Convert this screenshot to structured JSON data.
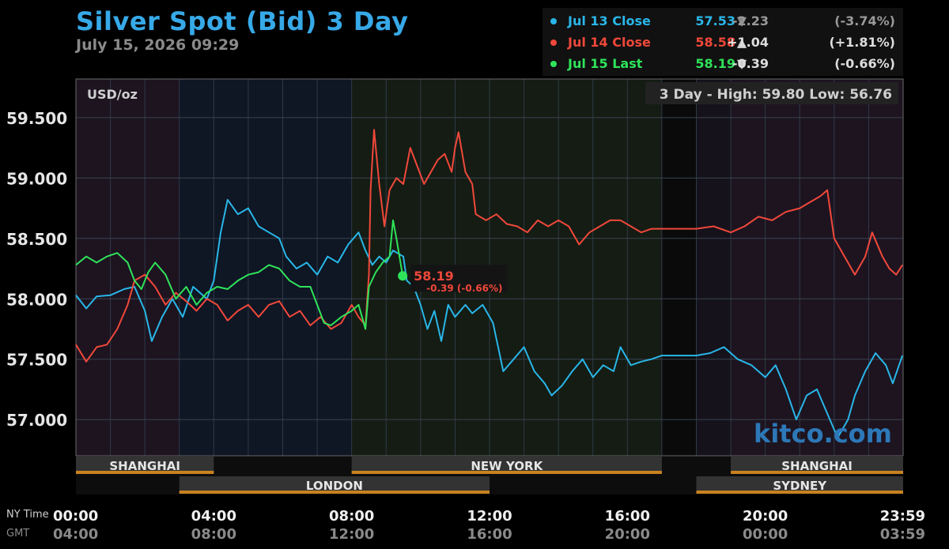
{
  "header": {
    "title": "Silver Spot (Bid) 3 Day",
    "timestamp": "July 15, 2026 09:29"
  },
  "legend": [
    {
      "name": "Jul 13 Close",
      "price": "57.53",
      "arrow": "▼",
      "change": "-2.23",
      "percent": "(-3.74%)",
      "color": "#29b6e8",
      "arrow_color": "#888888"
    },
    {
      "name": "Jul 14 Close",
      "price": "58.58",
      "arrow": "▲",
      "change": "+1.04",
      "percent": "(+1.81%)",
      "color": "#f0483a",
      "arrow_color": "#dddddd"
    },
    {
      "name": "Jul 15 Last",
      "price": "58.19",
      "arrow": "▼",
      "change": "-0.39",
      "percent": "(-0.66%)",
      "color": "#2fe35a",
      "arrow_color": "#dddddd"
    }
  ],
  "chart_data": {
    "type": "line",
    "unit_label": "USD/oz",
    "high_low": "3 Day - High: 59.80  Low: 56.76",
    "watermark": "kitco.com",
    "ylim": [
      56.7,
      59.82
    ],
    "y_ticks": [
      "59.500",
      "59.000",
      "58.500",
      "58.000",
      "57.500",
      "57.000"
    ],
    "y_tick_values": [
      59.5,
      59.0,
      58.5,
      58.0,
      57.5,
      57.0
    ],
    "xlim_hours": [
      0,
      24
    ],
    "ny_time_label": "NY Time",
    "gmt_label": "GMT",
    "x_ticks_ny": [
      "00:00",
      "04:00",
      "08:00",
      "12:00",
      "16:00",
      "20:00",
      "23:59"
    ],
    "x_ticks_gmt": [
      "04:00",
      "08:00",
      "12:00",
      "16:00",
      "20:00",
      "00:00",
      "03:59"
    ],
    "x_tick_hours": [
      0,
      4,
      8,
      12,
      16,
      20,
      23.98
    ],
    "sessions": [
      {
        "name": "SHANGHAI",
        "start": 0,
        "end": 4,
        "row": 1
      },
      {
        "name": "NEW YORK",
        "start": 8,
        "end": 17,
        "row": 1
      },
      {
        "name": "SHANGHAI",
        "start": 19,
        "end": 24,
        "row": 1
      },
      {
        "name": "LONDON",
        "start": 3,
        "end": 12,
        "row": 2
      },
      {
        "name": "SYDNEY",
        "start": 18,
        "end": 24,
        "row": 2
      }
    ],
    "current_label": {
      "price": "58.19",
      "change": "-0.39 (-0.66%)",
      "hour": 9.48,
      "value": 58.19
    },
    "series": [
      {
        "name": "Jul 13 Close",
        "color": "#29b6e8",
        "points": [
          [
            0,
            58.03
          ],
          [
            0.3,
            57.92
          ],
          [
            0.6,
            58.02
          ],
          [
            1.0,
            58.03
          ],
          [
            1.4,
            58.08
          ],
          [
            1.7,
            58.1
          ],
          [
            2.0,
            57.9
          ],
          [
            2.2,
            57.65
          ],
          [
            2.5,
            57.85
          ],
          [
            2.8,
            58.0
          ],
          [
            3.1,
            57.85
          ],
          [
            3.4,
            58.1
          ],
          [
            3.8,
            58.0
          ],
          [
            4.0,
            58.15
          ],
          [
            4.2,
            58.55
          ],
          [
            4.4,
            58.82
          ],
          [
            4.7,
            58.7
          ],
          [
            5.0,
            58.75
          ],
          [
            5.3,
            58.6
          ],
          [
            5.6,
            58.55
          ],
          [
            5.9,
            58.5
          ],
          [
            6.1,
            58.35
          ],
          [
            6.4,
            58.25
          ],
          [
            6.7,
            58.3
          ],
          [
            7.0,
            58.2
          ],
          [
            7.3,
            58.35
          ],
          [
            7.6,
            58.3
          ],
          [
            7.9,
            58.45
          ],
          [
            8.2,
            58.55
          ],
          [
            8.4,
            58.4
          ],
          [
            8.6,
            58.28
          ],
          [
            8.8,
            58.35
          ],
          [
            9.0,
            58.3
          ],
          [
            9.2,
            58.4
          ],
          [
            9.5,
            58.35
          ],
          [
            9.6,
            58.15
          ],
          [
            9.8,
            58.1
          ],
          [
            10.0,
            57.95
          ],
          [
            10.2,
            57.75
          ],
          [
            10.4,
            57.9
          ],
          [
            10.6,
            57.65
          ],
          [
            10.8,
            57.95
          ],
          [
            11.0,
            57.85
          ],
          [
            11.3,
            57.95
          ],
          [
            11.5,
            57.88
          ],
          [
            11.8,
            57.95
          ],
          [
            12.1,
            57.8
          ],
          [
            12.4,
            57.4
          ],
          [
            12.7,
            57.5
          ],
          [
            13.0,
            57.6
          ],
          [
            13.3,
            57.4
          ],
          [
            13.6,
            57.3
          ],
          [
            13.8,
            57.2
          ],
          [
            14.1,
            57.28
          ],
          [
            14.4,
            57.4
          ],
          [
            14.7,
            57.5
          ],
          [
            15.0,
            57.35
          ],
          [
            15.3,
            57.45
          ],
          [
            15.6,
            57.4
          ],
          [
            15.8,
            57.6
          ],
          [
            16.1,
            57.45
          ],
          [
            16.4,
            57.48
          ],
          [
            16.7,
            57.5
          ],
          [
            17.0,
            57.53
          ],
          [
            18.0,
            57.53
          ],
          [
            18.4,
            57.55
          ],
          [
            18.8,
            57.6
          ],
          [
            19.2,
            57.5
          ],
          [
            19.6,
            57.45
          ],
          [
            20.0,
            57.35
          ],
          [
            20.3,
            57.45
          ],
          [
            20.6,
            57.25
          ],
          [
            20.9,
            57.0
          ],
          [
            21.2,
            57.2
          ],
          [
            21.5,
            57.25
          ],
          [
            21.8,
            57.05
          ],
          [
            22.1,
            56.85
          ],
          [
            22.4,
            57.0
          ],
          [
            22.6,
            57.2
          ],
          [
            22.9,
            57.4
          ],
          [
            23.2,
            57.55
          ],
          [
            23.5,
            57.45
          ],
          [
            23.7,
            57.3
          ],
          [
            23.98,
            57.53
          ]
        ]
      },
      {
        "name": "Jul 14 Close",
        "color": "#f0483a",
        "points": [
          [
            0,
            57.62
          ],
          [
            0.3,
            57.48
          ],
          [
            0.6,
            57.6
          ],
          [
            0.9,
            57.62
          ],
          [
            1.2,
            57.75
          ],
          [
            1.5,
            57.95
          ],
          [
            1.7,
            58.15
          ],
          [
            2.0,
            58.2
          ],
          [
            2.3,
            58.1
          ],
          [
            2.6,
            57.95
          ],
          [
            2.9,
            58.05
          ],
          [
            3.2,
            57.98
          ],
          [
            3.5,
            57.9
          ],
          [
            3.8,
            58.0
          ],
          [
            4.1,
            57.95
          ],
          [
            4.4,
            57.82
          ],
          [
            4.7,
            57.9
          ],
          [
            5.0,
            57.95
          ],
          [
            5.3,
            57.85
          ],
          [
            5.6,
            57.95
          ],
          [
            5.9,
            57.98
          ],
          [
            6.2,
            57.85
          ],
          [
            6.5,
            57.9
          ],
          [
            6.8,
            57.78
          ],
          [
            7.1,
            57.85
          ],
          [
            7.4,
            57.75
          ],
          [
            7.7,
            57.8
          ],
          [
            8.0,
            57.95
          ],
          [
            8.2,
            57.85
          ],
          [
            8.4,
            57.78
          ],
          [
            8.5,
            58.2
          ],
          [
            8.55,
            58.9
          ],
          [
            8.65,
            59.4
          ],
          [
            8.8,
            58.95
          ],
          [
            8.95,
            58.6
          ],
          [
            9.1,
            58.9
          ],
          [
            9.3,
            59.0
          ],
          [
            9.5,
            58.95
          ],
          [
            9.7,
            59.25
          ],
          [
            9.9,
            59.1
          ],
          [
            10.1,
            58.95
          ],
          [
            10.3,
            59.05
          ],
          [
            10.5,
            59.15
          ],
          [
            10.7,
            59.2
          ],
          [
            10.9,
            59.05
          ],
          [
            11.0,
            59.25
          ],
          [
            11.1,
            59.38
          ],
          [
            11.3,
            59.05
          ],
          [
            11.5,
            58.95
          ],
          [
            11.6,
            58.7
          ],
          [
            11.9,
            58.65
          ],
          [
            12.2,
            58.7
          ],
          [
            12.5,
            58.62
          ],
          [
            12.8,
            58.6
          ],
          [
            13.1,
            58.55
          ],
          [
            13.4,
            58.65
          ],
          [
            13.7,
            58.6
          ],
          [
            14.0,
            58.65
          ],
          [
            14.3,
            58.6
          ],
          [
            14.6,
            58.45
          ],
          [
            14.9,
            58.55
          ],
          [
            15.2,
            58.6
          ],
          [
            15.5,
            58.65
          ],
          [
            15.8,
            58.65
          ],
          [
            16.1,
            58.6
          ],
          [
            16.4,
            58.55
          ],
          [
            16.7,
            58.58
          ],
          [
            17.0,
            58.58
          ],
          [
            18.0,
            58.58
          ],
          [
            18.5,
            58.6
          ],
          [
            19.0,
            58.55
          ],
          [
            19.4,
            58.6
          ],
          [
            19.8,
            58.68
          ],
          [
            20.2,
            58.65
          ],
          [
            20.6,
            58.72
          ],
          [
            21.0,
            58.75
          ],
          [
            21.3,
            58.8
          ],
          [
            21.6,
            58.85
          ],
          [
            21.8,
            58.9
          ],
          [
            22.0,
            58.5
          ],
          [
            22.3,
            58.35
          ],
          [
            22.6,
            58.2
          ],
          [
            22.9,
            58.35
          ],
          [
            23.1,
            58.55
          ],
          [
            23.4,
            58.35
          ],
          [
            23.6,
            58.25
          ],
          [
            23.8,
            58.2
          ],
          [
            23.98,
            58.28
          ]
        ]
      },
      {
        "name": "Jul 15 Last",
        "color": "#2fe35a",
        "points": [
          [
            0,
            58.28
          ],
          [
            0.3,
            58.35
          ],
          [
            0.6,
            58.3
          ],
          [
            0.9,
            58.35
          ],
          [
            1.2,
            58.38
          ],
          [
            1.5,
            58.3
          ],
          [
            1.7,
            58.15
          ],
          [
            1.9,
            58.08
          ],
          [
            2.1,
            58.22
          ],
          [
            2.3,
            58.3
          ],
          [
            2.6,
            58.2
          ],
          [
            2.9,
            58.0
          ],
          [
            3.2,
            58.1
          ],
          [
            3.5,
            57.95
          ],
          [
            3.8,
            58.05
          ],
          [
            4.1,
            58.1
          ],
          [
            4.4,
            58.08
          ],
          [
            4.7,
            58.15
          ],
          [
            5.0,
            58.2
          ],
          [
            5.3,
            58.22
          ],
          [
            5.6,
            58.28
          ],
          [
            5.9,
            58.25
          ],
          [
            6.2,
            58.15
          ],
          [
            6.5,
            58.1
          ],
          [
            6.8,
            58.1
          ],
          [
            7.0,
            57.95
          ],
          [
            7.2,
            57.8
          ],
          [
            7.4,
            57.78
          ],
          [
            7.7,
            57.85
          ],
          [
            8.0,
            57.9
          ],
          [
            8.2,
            57.95
          ],
          [
            8.4,
            57.75
          ],
          [
            8.5,
            58.1
          ],
          [
            8.7,
            58.22
          ],
          [
            8.9,
            58.3
          ],
          [
            9.1,
            58.35
          ],
          [
            9.2,
            58.65
          ],
          [
            9.3,
            58.5
          ],
          [
            9.48,
            58.19
          ]
        ]
      }
    ]
  }
}
